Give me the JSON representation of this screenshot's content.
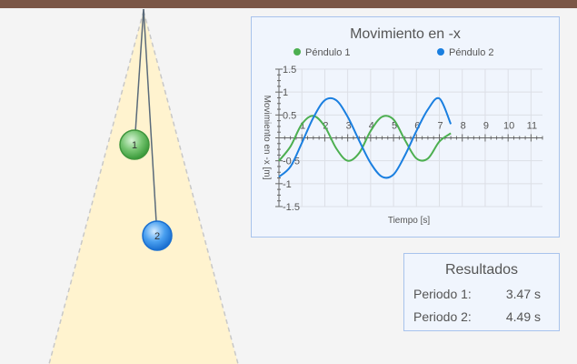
{
  "simulation": {
    "pendulums": [
      {
        "label": "1",
        "color": "#4caf50"
      },
      {
        "label": "2",
        "color": "#1a7fe0"
      }
    ]
  },
  "chart": {
    "title": "Movimiento en -x",
    "xlabel": "Tiempo [s]",
    "ylabel": "Movimiento en -x [m]"
  },
  "chart_data": {
    "type": "line",
    "title": "Movimiento en -x",
    "xlabel": "Tiempo [s]",
    "ylabel": "Movimiento en -x [m]",
    "xlim": [
      0,
      11.5
    ],
    "ylim": [
      -1.5,
      1.5
    ],
    "x_ticks": [
      1,
      2,
      3,
      4,
      5,
      6,
      7,
      8,
      9,
      10,
      11
    ],
    "y_ticks": [
      -1.5,
      -1,
      -0.5,
      0.5,
      1,
      1.5
    ],
    "grid": true,
    "legend": "top",
    "series": [
      {
        "name": "Péndulo 1",
        "color": "#4caf50",
        "x": [
          0,
          0.5,
          1.0,
          1.5,
          2.0,
          2.5,
          3.0,
          3.5,
          4.0,
          4.5,
          5.0,
          5.5,
          6.0,
          6.5,
          7.0,
          7.5
        ],
        "y": [
          -0.5,
          -0.19,
          0.3,
          0.48,
          0.25,
          -0.23,
          -0.5,
          -0.33,
          0.15,
          0.46,
          0.4,
          -0.05,
          -0.45,
          -0.45,
          -0.08,
          0.1
        ]
      },
      {
        "name": "Péndulo 2",
        "color": "#1a7fe0",
        "x": [
          0,
          0.5,
          1.0,
          1.5,
          2.0,
          2.5,
          3.0,
          3.5,
          4.0,
          4.5,
          5.0,
          5.5,
          6.0,
          6.5,
          7.0,
          7.5
        ],
        "y": [
          -0.85,
          -0.63,
          -0.11,
          0.44,
          0.82,
          0.82,
          0.46,
          -0.06,
          -0.55,
          -0.85,
          -0.8,
          -0.38,
          0.15,
          0.62,
          0.86,
          0.3
        ]
      }
    ]
  },
  "results": {
    "title": "Resultados",
    "period1_label": "Periodo 1:",
    "period1_value": "3.47 s",
    "period2_label": "Periodo 2:",
    "period2_value": "4.49 s"
  }
}
